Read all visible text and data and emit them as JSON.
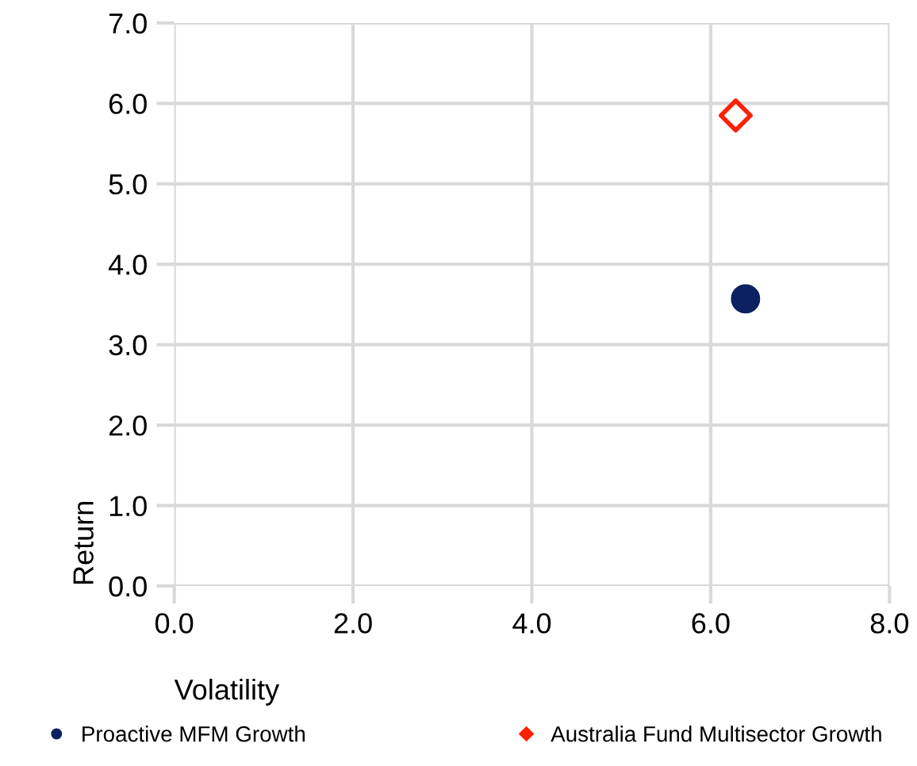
{
  "chart_data": {
    "type": "scatter",
    "xlabel": "Volatility",
    "ylabel": "Return",
    "xlim": [
      0,
      8
    ],
    "xticks": [
      {
        "value": 0,
        "label": "0.0"
      },
      {
        "value": 2,
        "label": "2.0"
      },
      {
        "value": 4,
        "label": "4.0"
      },
      {
        "value": 6,
        "label": "6.0"
      },
      {
        "value": 8,
        "label": "8.0"
      }
    ],
    "ylim": [
      0,
      7
    ],
    "yticks": [
      {
        "value": 0,
        "label": "0.0"
      },
      {
        "value": 1,
        "label": "1.0"
      },
      {
        "value": 2,
        "label": "2.0"
      },
      {
        "value": 3,
        "label": "3.0"
      },
      {
        "value": 4,
        "label": "4.0"
      },
      {
        "value": 5,
        "label": "5.0"
      },
      {
        "value": 6,
        "label": "6.0"
      },
      {
        "value": 7,
        "label": "7.0"
      }
    ],
    "grid": true,
    "legend": "bottom",
    "series": [
      {
        "name": "Proactive MFM Growth",
        "color": "#0c2161",
        "marker": "circle",
        "x": [
          6.39
        ],
        "values": [
          3.57
        ]
      },
      {
        "name": "Australia Fund Multisector Growth",
        "color": "#ff2000",
        "marker": "diamond",
        "x": [
          6.28
        ],
        "values": [
          5.85
        ]
      }
    ]
  }
}
